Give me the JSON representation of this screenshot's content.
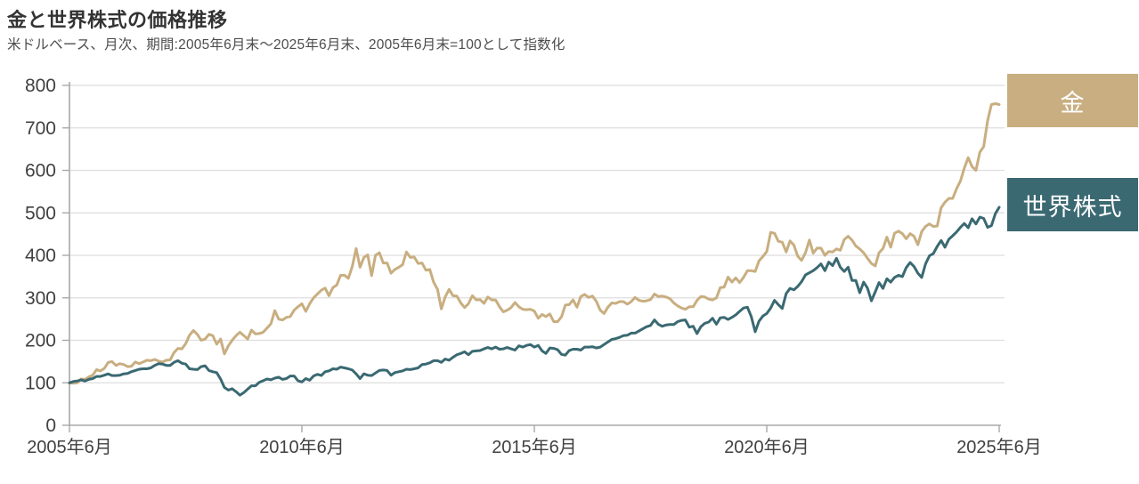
{
  "header": {
    "title": "金と世界株式の価格推移",
    "subtitle": "米ドルベース、月次、期間:2005年6月末〜2025年6月末、2005年6月末=100として指数化"
  },
  "legend": {
    "gold": "金",
    "stocks": "世界株式"
  },
  "colors": {
    "gold": "#C8AE80",
    "stocks": "#3A6972",
    "grid": "#DEDEDE",
    "axis": "#A9A9A9",
    "tick_text": "#404040",
    "legend_text": "#FFFFFF"
  },
  "chart_data": {
    "type": "line",
    "title": "金と世界株式の価格推移",
    "subtitle": "米ドルベース、月次、期間:2005年6月末〜2025年6月末、2005年6月末=100として指数化",
    "x_start": "2005-06",
    "x_end": "2025-06",
    "frequency": "monthly",
    "indexed_base": "2005年6月末=100",
    "x_tick_labels": [
      "2005年6月",
      "2010年6月",
      "2015年6月",
      "2020年6月",
      "2025年6月"
    ],
    "x_tick_month_interval": 60,
    "y_ticks": [
      0,
      100,
      200,
      300,
      400,
      500,
      600,
      700,
      800
    ],
    "ylim": [
      0,
      800
    ],
    "grid": "horizontal",
    "legend_position": "right",
    "series": [
      {
        "name": "金",
        "color": "#C8AE80",
        "values": [
          100,
          99,
          100,
          109,
          108,
          114,
          118,
          131,
          128,
          134,
          148,
          150,
          141,
          145,
          143,
          138,
          139,
          149,
          145,
          149,
          153,
          152,
          155,
          151,
          149,
          153,
          154,
          171,
          181,
          180,
          192,
          212,
          223,
          214,
          200,
          203,
          214,
          211,
          191,
          203,
          168,
          187,
          200,
          211,
          219,
          211,
          203,
          224,
          215,
          216,
          219,
          229,
          239,
          270,
          250,
          248,
          254,
          256,
          271,
          279,
          286,
          268,
          286,
          300,
          309,
          318,
          323,
          305,
          324,
          330,
          353,
          353,
          346,
          374,
          416,
          372,
          395,
          401,
          352,
          400,
          406,
          382,
          382,
          358,
          367,
          372,
          378,
          408,
          395,
          396,
          381,
          382,
          365,
          367,
          337,
          320,
          274,
          302,
          320,
          305,
          304,
          288,
          277,
          286,
          305,
          295,
          296,
          287,
          302,
          295,
          295,
          279,
          267,
          271,
          277,
          289,
          279,
          273,
          272,
          273,
          269,
          252,
          261,
          256,
          262,
          244,
          244,
          255,
          283,
          284,
          295,
          278,
          303,
          308,
          301,
          304,
          292,
          271,
          263,
          278,
          288,
          287,
          291,
          291,
          285,
          291,
          301,
          294,
          292,
          293,
          296,
          309,
          303,
          304,
          302,
          298,
          288,
          281,
          276,
          273,
          279,
          279,
          294,
          303,
          302,
          297,
          295,
          300,
          324,
          325,
          349,
          337,
          347,
          336,
          348,
          364,
          364,
          362,
          387,
          397,
          409,
          454,
          452,
          433,
          431,
          408,
          434,
          424,
          398,
          388,
          406,
          436,
          405,
          417,
          417,
          400,
          409,
          408,
          415,
          412,
          437,
          445,
          436,
          422,
          415,
          406,
          393,
          381,
          375,
          406,
          416,
          443,
          419,
          452,
          457,
          451,
          439,
          451,
          445,
          425,
          456,
          468,
          474,
          468,
          469,
          512,
          525,
          534,
          534,
          557,
          575,
          605,
          630,
          609,
          600,
          643,
          656,
          717,
          755,
          757,
          755
        ]
      },
      {
        "name": "世界株式",
        "color": "#3A6972",
        "values": [
          100,
          103,
          104,
          107,
          104,
          108,
          110,
          115,
          115,
          118,
          121,
          117,
          117,
          118,
          121,
          122,
          126,
          129,
          132,
          133,
          133,
          135,
          141,
          145,
          144,
          141,
          141,
          148,
          152,
          146,
          144,
          133,
          132,
          131,
          138,
          140,
          129,
          126,
          124,
          109,
          89,
          83,
          86,
          79,
          71,
          77,
          85,
          93,
          93,
          101,
          105,
          109,
          107,
          111,
          113,
          108,
          110,
          116,
          116,
          105,
          102,
          110,
          106,
          116,
          120,
          117,
          126,
          128,
          133,
          132,
          137,
          135,
          133,
          130,
          121,
          110,
          121,
          118,
          117,
          123,
          129,
          130,
          129,
          118,
          124,
          126,
          128,
          132,
          131,
          133,
          135,
          143,
          144,
          147,
          152,
          152,
          148,
          156,
          153,
          160,
          166,
          169,
          173,
          166,
          174,
          175,
          176,
          180,
          183,
          180,
          184,
          179,
          180,
          183,
          180,
          177,
          187,
          184,
          188,
          190,
          184,
          188,
          175,
          169,
          182,
          181,
          178,
          167,
          165,
          176,
          179,
          179,
          177,
          184,
          184,
          185,
          182,
          184,
          190,
          196,
          202,
          204,
          207,
          211,
          212,
          217,
          217,
          222,
          227,
          232,
          235,
          248,
          238,
          233,
          236,
          237,
          237,
          244,
          247,
          248,
          231,
          233,
          216,
          232,
          240,
          243,
          252,
          238,
          253,
          254,
          249,
          254,
          260,
          268,
          276,
          278,
          256,
          220,
          245,
          257,
          263,
          276,
          294,
          284,
          275,
          310,
          322,
          319,
          327,
          338,
          354,
          359,
          364,
          371,
          380,
          364,
          384,
          376,
          393,
          372,
          362,
          372,
          341,
          341,
          312,
          337,
          323,
          293,
          314,
          336,
          322,
          345,
          337,
          348,
          353,
          350,
          371,
          383,
          374,
          358,
          348,
          380,
          399,
          404,
          421,
          435,
          419,
          438,
          446,
          455,
          466,
          475,
          465,
          486,
          474,
          490,
          487,
          466,
          470,
          498,
          513
        ]
      }
    ]
  }
}
